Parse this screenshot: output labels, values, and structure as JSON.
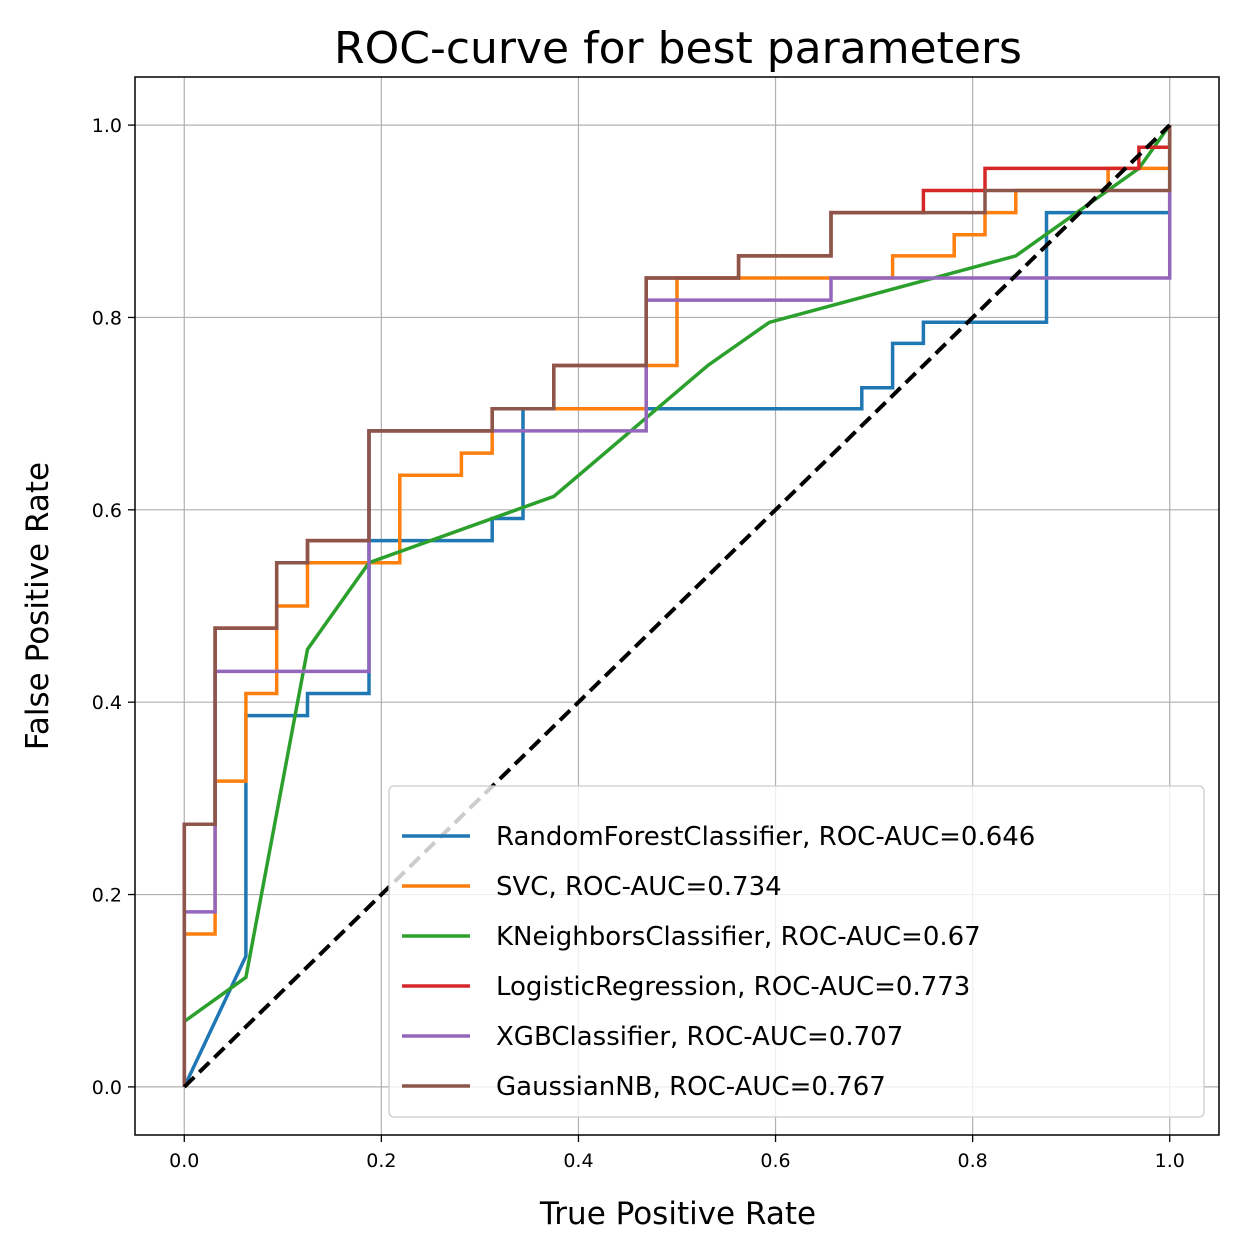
{
  "chart_data": {
    "type": "line",
    "title": "ROC-curve for best parameters",
    "xlabel": "True Positive Rate",
    "ylabel": "False Positive Rate",
    "xlim": [
      -0.05,
      1.05
    ],
    "ylim": [
      -0.05,
      1.05
    ],
    "xticks": [
      0.0,
      0.2,
      0.4,
      0.6,
      0.8,
      1.0
    ],
    "yticks": [
      0.0,
      0.2,
      0.4,
      0.6,
      0.8,
      1.0
    ],
    "xtick_labels": [
      "0.0",
      "0.2",
      "0.4",
      "0.6",
      "0.8",
      "1.0"
    ],
    "ytick_labels": [
      "0.0",
      "0.2",
      "0.4",
      "0.6",
      "0.8",
      "1.0"
    ],
    "grid": true,
    "legend_position": "lower-right",
    "series": [
      {
        "name": "RandomForestClassifier, ROC-AUC=0.646",
        "color": "#1f77b4",
        "x": [
          0.0,
          0.0625,
          0.0625,
          0.125,
          0.125,
          0.1875,
          0.1875,
          0.3125,
          0.3125,
          0.34375,
          0.34375,
          0.6875,
          0.6875,
          0.71875,
          0.71875,
          0.75,
          0.75,
          0.875,
          0.875,
          1.0,
          1.0
        ],
        "y": [
          0.0,
          0.136,
          0.386,
          0.386,
          0.409,
          0.409,
          0.568,
          0.568,
          0.591,
          0.591,
          0.705,
          0.705,
          0.727,
          0.727,
          0.773,
          0.773,
          0.795,
          0.795,
          0.909,
          0.909,
          1.0
        ]
      },
      {
        "name": "SVC, ROC-AUC=0.734",
        "color": "#ff7f0e",
        "x": [
          0.0,
          0.0,
          0.03125,
          0.03125,
          0.0625,
          0.0625,
          0.09375,
          0.09375,
          0.125,
          0.125,
          0.21875,
          0.21875,
          0.28125,
          0.28125,
          0.3125,
          0.3125,
          0.46875,
          0.46875,
          0.5,
          0.5,
          0.71875,
          0.71875,
          0.78125,
          0.78125,
          0.8125,
          0.8125,
          0.84375,
          0.84375,
          0.9375,
          0.9375,
          1.0,
          1.0
        ],
        "y": [
          0.0,
          0.159,
          0.159,
          0.318,
          0.318,
          0.409,
          0.409,
          0.5,
          0.5,
          0.545,
          0.545,
          0.636,
          0.636,
          0.659,
          0.659,
          0.705,
          0.705,
          0.75,
          0.75,
          0.841,
          0.841,
          0.864,
          0.864,
          0.886,
          0.886,
          0.909,
          0.909,
          0.932,
          0.932,
          0.955,
          0.955,
          1.0
        ]
      },
      {
        "name": "KNeighborsClassifier, ROC-AUC=0.67",
        "color": "#2ca02c",
        "x": [
          0.0,
          0.0625,
          0.125,
          0.1875,
          0.375,
          0.53125,
          0.59375,
          0.84375,
          0.96875,
          1.0
        ],
        "y": [
          0.068,
          0.114,
          0.455,
          0.545,
          0.614,
          0.75,
          0.795,
          0.864,
          0.955,
          1.0
        ]
      },
      {
        "name": "LogisticRegression, ROC-AUC=0.773",
        "color": "#d62728",
        "x": [
          0.0,
          0.0,
          0.03125,
          0.03125,
          0.09375,
          0.09375,
          0.125,
          0.125,
          0.1875,
          0.1875,
          0.3125,
          0.3125,
          0.375,
          0.375,
          0.46875,
          0.46875,
          0.5625,
          0.5625,
          0.65625,
          0.65625,
          0.75,
          0.75,
          0.8125,
          0.8125,
          0.96875,
          0.96875,
          1.0,
          1.0
        ],
        "y": [
          0.0,
          0.273,
          0.273,
          0.477,
          0.477,
          0.545,
          0.545,
          0.568,
          0.568,
          0.682,
          0.682,
          0.705,
          0.705,
          0.75,
          0.75,
          0.841,
          0.841,
          0.864,
          0.864,
          0.909,
          0.909,
          0.932,
          0.932,
          0.955,
          0.955,
          0.977,
          0.977,
          1.0
        ]
      },
      {
        "name": "XGBClassifier, ROC-AUC=0.707",
        "color": "#9467bd",
        "x": [
          0.0,
          0.0,
          0.03125,
          0.03125,
          0.1875,
          0.1875,
          0.46875,
          0.46875,
          0.65625,
          0.65625,
          1.0,
          1.0
        ],
        "y": [
          0.0,
          0.182,
          0.182,
          0.432,
          0.432,
          0.682,
          0.682,
          0.818,
          0.818,
          0.841,
          0.841,
          0.932
        ]
      },
      {
        "name": "GaussianNB, ROC-AUC=0.767",
        "color": "#8c564b",
        "x": [
          0.0,
          0.0,
          0.03125,
          0.03125,
          0.09375,
          0.09375,
          0.125,
          0.125,
          0.1875,
          0.1875,
          0.3125,
          0.3125,
          0.375,
          0.375,
          0.46875,
          0.46875,
          0.5625,
          0.5625,
          0.65625,
          0.65625,
          0.8125,
          0.8125,
          1.0,
          1.0
        ],
        "y": [
          0.0,
          0.273,
          0.273,
          0.477,
          0.477,
          0.545,
          0.545,
          0.568,
          0.568,
          0.682,
          0.682,
          0.705,
          0.705,
          0.75,
          0.75,
          0.841,
          0.841,
          0.864,
          0.864,
          0.909,
          0.909,
          0.932,
          0.932,
          1.0
        ]
      }
    ],
    "diagonal": {
      "color": "#000000",
      "style": "dashed",
      "x": [
        0.0,
        1.0
      ],
      "y": [
        0.0,
        1.0
      ]
    }
  }
}
